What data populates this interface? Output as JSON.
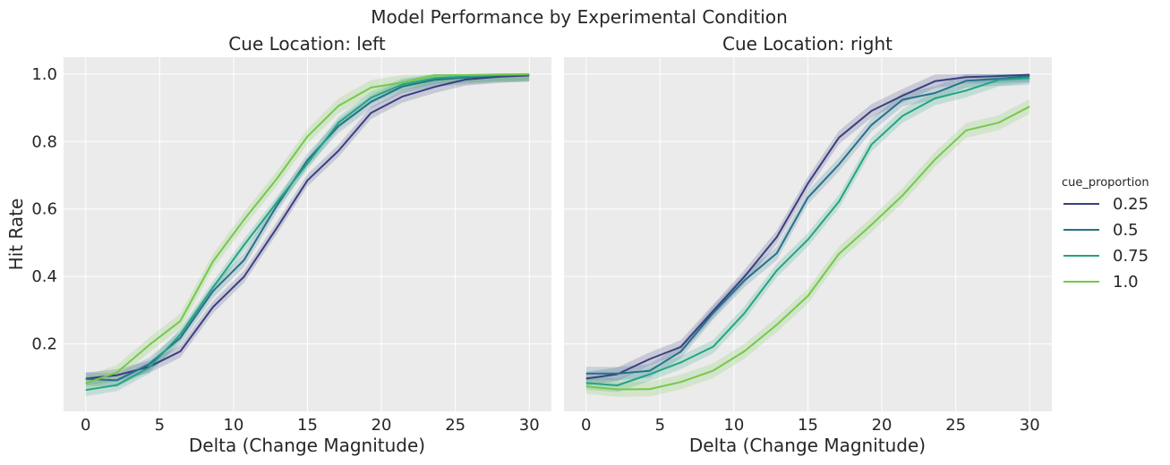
{
  "figure": {
    "title": "Model Performance by Experimental Condition",
    "ylabel": "Hit Rate",
    "legend_title": "cue_proportion"
  },
  "colors": {
    "panel_bg": "#ebebeb",
    "grid": "#ffffff",
    "series": [
      "#3b3f80",
      "#26718a",
      "#23a482",
      "#74c94b"
    ]
  },
  "chart_data": [
    {
      "type": "line",
      "title": "Cue Location: left",
      "xlabel": "Delta (Change Magnitude)",
      "ylabel": "Hit Rate",
      "xlim": [
        -1.5,
        31.5
      ],
      "ylim": [
        0.0,
        1.05
      ],
      "xticks": [
        0,
        5,
        10,
        15,
        20,
        25,
        30
      ],
      "yticks": [
        0.2,
        0.4,
        0.6,
        0.8,
        1.0
      ],
      "ytick_labels": [
        "0.2",
        "0.4",
        "0.6",
        "0.8",
        "1.0"
      ],
      "grid": true,
      "legend": "outside-right",
      "x": [
        0,
        2.1,
        4.3,
        6.4,
        8.6,
        10.7,
        12.9,
        15.0,
        17.1,
        19.3,
        21.4,
        23.6,
        25.7,
        27.9,
        30
      ],
      "series": [
        {
          "name": "0.25",
          "values": [
            0.097,
            0.107,
            0.132,
            0.178,
            0.309,
            0.399,
            0.542,
            0.685,
            0.773,
            0.885,
            0.933,
            0.962,
            0.984,
            0.992,
            0.996
          ],
          "band": 0.018
        },
        {
          "name": "0.5",
          "values": [
            0.096,
            0.092,
            0.14,
            0.218,
            0.356,
            0.448,
            0.608,
            0.745,
            0.846,
            0.918,
            0.963,
            0.983,
            0.99,
            0.996,
            0.998
          ],
          "band": 0.02
        },
        {
          "name": "0.75",
          "values": [
            0.063,
            0.078,
            0.13,
            0.228,
            0.367,
            0.493,
            0.618,
            0.735,
            0.856,
            0.93,
            0.969,
            0.988,
            0.993,
            0.997,
            0.999
          ],
          "band": 0.018
        },
        {
          "name": "1.0",
          "values": [
            0.083,
            0.115,
            0.197,
            0.268,
            0.444,
            0.568,
            0.688,
            0.815,
            0.906,
            0.96,
            0.975,
            0.996,
            0.997,
            0.999,
            1.0
          ],
          "band": 0.022
        }
      ]
    },
    {
      "type": "line",
      "title": "Cue Location: right",
      "xlabel": "Delta (Change Magnitude)",
      "ylabel": "",
      "xlim": [
        -1.5,
        31.5
      ],
      "ylim": [
        0.0,
        1.05
      ],
      "xticks": [
        0,
        5,
        10,
        15,
        20,
        25,
        30
      ],
      "grid": true,
      "x": [
        0,
        2.1,
        4.3,
        6.4,
        8.6,
        10.7,
        12.9,
        15.0,
        17.1,
        19.3,
        21.4,
        23.6,
        25.7,
        27.9,
        30
      ],
      "series": [
        {
          "name": "0.25",
          "values": [
            0.097,
            0.11,
            0.155,
            0.191,
            0.298,
            0.399,
            0.517,
            0.676,
            0.812,
            0.891,
            0.936,
            0.979,
            0.991,
            0.994,
            0.998
          ],
          "band": 0.02
        },
        {
          "name": "0.5",
          "values": [
            0.112,
            0.112,
            0.12,
            0.177,
            0.292,
            0.388,
            0.469,
            0.634,
            0.732,
            0.849,
            0.924,
            0.944,
            0.98,
            0.986,
            0.994
          ],
          "band": 0.02
        },
        {
          "name": "0.75",
          "values": [
            0.084,
            0.077,
            0.11,
            0.145,
            0.192,
            0.291,
            0.418,
            0.509,
            0.622,
            0.791,
            0.876,
            0.928,
            0.951,
            0.983,
            0.988
          ],
          "band": 0.02
        },
        {
          "name": "1.0",
          "values": [
            0.074,
            0.065,
            0.066,
            0.087,
            0.121,
            0.178,
            0.257,
            0.342,
            0.467,
            0.553,
            0.64,
            0.747,
            0.833,
            0.856,
            0.904
          ],
          "band": 0.022
        }
      ]
    }
  ]
}
